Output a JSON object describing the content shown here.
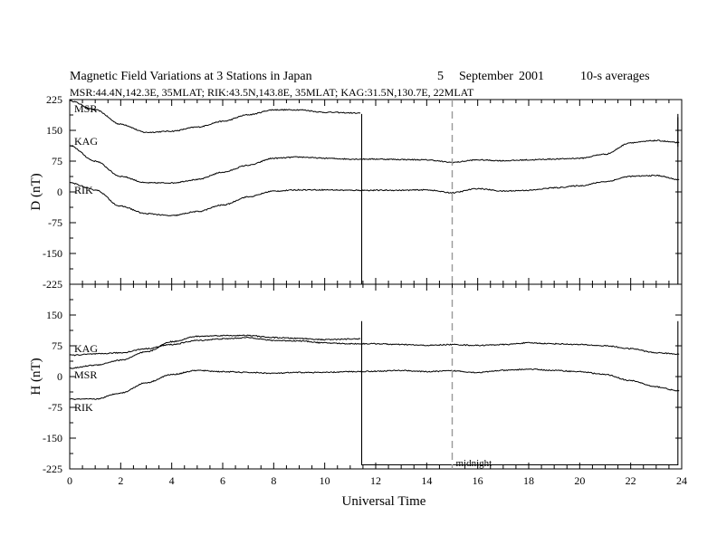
{
  "title": {
    "main": "Magnetic Field Variations at 3 Stations in Japan",
    "day": "5",
    "month": "September",
    "year": "2001",
    "averaging": "10-s averages",
    "stations_line": "MSR:44.4N,142.3E, 35MLAT;  RIK:43.5N,143.8E, 35MLAT;  KAG:31.5N,130.7E, 22MLAT"
  },
  "colors": {
    "trace": "#000000",
    "midnight_line": "#999999",
    "background": "#ffffff"
  },
  "chart_data": [
    {
      "type": "line",
      "panel": "top",
      "ylabel": "D (nT)",
      "ylim": [
        -225,
        225
      ],
      "yticks": [
        225,
        150,
        75,
        0,
        -75,
        -150,
        -225
      ],
      "xlim": [
        0,
        24
      ],
      "series": [
        {
          "name": "MSR",
          "x": [
            0,
            1,
            2,
            3,
            4,
            5,
            6,
            7,
            8,
            9,
            10,
            11.4
          ],
          "values": [
            222,
            200,
            165,
            145,
            148,
            158,
            172,
            188,
            200,
            200,
            194,
            192
          ]
        },
        {
          "name": "KAG",
          "x": [
            0,
            1,
            2,
            3,
            4,
            5,
            6,
            7,
            8,
            9,
            10,
            11,
            12,
            13,
            14,
            15,
            16,
            17,
            18,
            19,
            20,
            21,
            22,
            23,
            23.9
          ],
          "values": [
            112,
            75,
            38,
            22,
            22,
            30,
            48,
            65,
            82,
            85,
            82,
            80,
            80,
            79,
            78,
            72,
            78,
            76,
            78,
            80,
            82,
            92,
            120,
            125,
            120
          ]
        },
        {
          "name": "RIK",
          "x": [
            0,
            1,
            2,
            3,
            4,
            5,
            6,
            7,
            8,
            9,
            10,
            11,
            12,
            13,
            14,
            15,
            16,
            17,
            18,
            19,
            20,
            21,
            22,
            23,
            23.9
          ],
          "values": [
            22,
            5,
            -35,
            -53,
            -58,
            -48,
            -32,
            -12,
            2,
            5,
            5,
            4,
            4,
            4,
            5,
            -2,
            8,
            2,
            4,
            10,
            15,
            25,
            38,
            40,
            30
          ]
        }
      ],
      "overlay": [
        {
          "x": [
            11.45,
            11.45,
            23.85,
            23.85
          ],
          "values": [
            190,
            -225,
            -225,
            190
          ]
        }
      ]
    },
    {
      "type": "line",
      "panel": "bottom",
      "ylabel": "H (nT)",
      "xlabel": "Universal Time",
      "ylim": [
        -225,
        225
      ],
      "yticks": [
        150,
        75,
        0,
        -75,
        -150,
        -225
      ],
      "xlim": [
        0,
        24
      ],
      "xticks": [
        0,
        2,
        4,
        6,
        8,
        10,
        12,
        14,
        16,
        18,
        20,
        22,
        24
      ],
      "series": [
        {
          "name": "KAG",
          "x": [
            0,
            1,
            2,
            3,
            4,
            5,
            6,
            7,
            8,
            9,
            10,
            11,
            12,
            13,
            14,
            15,
            16,
            17,
            18,
            19,
            20,
            21,
            22,
            23,
            23.9
          ],
          "values": [
            52,
            55,
            58,
            68,
            78,
            88,
            92,
            95,
            88,
            87,
            82,
            80,
            80,
            78,
            76,
            78,
            76,
            78,
            82,
            80,
            78,
            75,
            68,
            58,
            55
          ]
        },
        {
          "name": "MSR",
          "x": [
            0,
            1,
            2,
            3,
            4,
            5,
            6,
            7,
            8,
            9,
            10,
            11.4
          ],
          "values": [
            20,
            28,
            40,
            60,
            85,
            98,
            100,
            100,
            95,
            93,
            90,
            92
          ]
        },
        {
          "name": "RIK",
          "x": [
            0,
            1,
            2,
            3,
            4,
            5,
            6,
            7,
            8,
            9,
            10,
            11,
            12,
            13,
            14,
            15,
            16,
            17,
            18,
            19,
            20,
            21,
            22,
            23,
            23.9
          ],
          "values": [
            -55,
            -55,
            -40,
            -15,
            5,
            15,
            12,
            10,
            8,
            10,
            10,
            12,
            13,
            15,
            12,
            14,
            10,
            15,
            18,
            15,
            12,
            5,
            -10,
            -25,
            -35
          ]
        }
      ],
      "overlay": [
        {
          "x": [
            11.45,
            11.45,
            23.85,
            23.85
          ],
          "values": [
            135,
            -215,
            -215,
            135
          ]
        }
      ],
      "annotation": {
        "label": "midnight",
        "x": 15
      }
    }
  ]
}
